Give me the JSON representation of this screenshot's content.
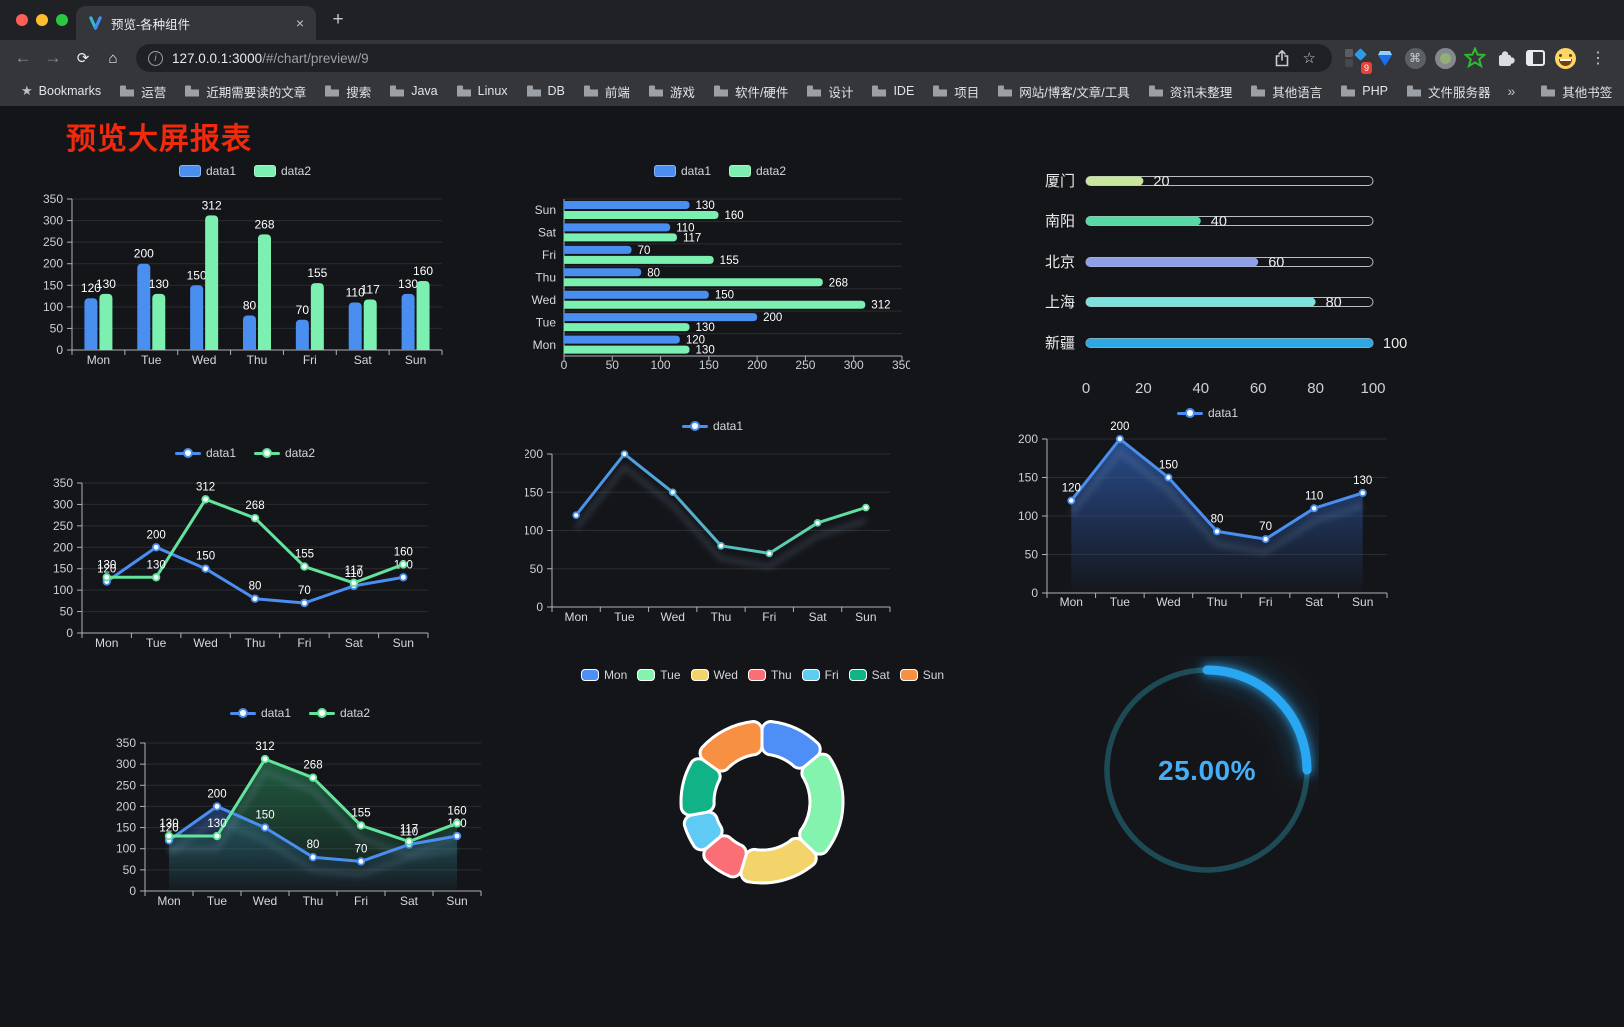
{
  "browser": {
    "tab_title": "预览-各种组件",
    "url_host": "127.0.0.1:3000",
    "url_path": "/#/chart/preview/9",
    "bookmarks_label": "Bookmarks",
    "bookmarks": [
      "运营",
      "近期需要读的文章",
      "搜索",
      "Java",
      "Linux",
      "DB",
      "前端",
      "游戏",
      "软件/硬件",
      "设计",
      "IDE",
      "项目",
      "网站/博客/文章/工具",
      "资讯未整理",
      "其他语言",
      "PHP",
      "文件服务器"
    ],
    "overflow": "»",
    "other_bookmarks": "其他书签",
    "extension_badge": "9",
    "icons": {
      "back": "←",
      "forward": "→",
      "reload": "⟳",
      "home": "⌂",
      "info": "i",
      "star": "☆",
      "close": "×",
      "new_tab": "+",
      "kebab": "⋮",
      "cmd": "⌘",
      "bookmarks_star": "★"
    }
  },
  "page": {
    "title": "预览大屏报表"
  },
  "chart_data": [
    {
      "id": "grouped-bar",
      "type": "bar",
      "categories": [
        "Mon",
        "Tue",
        "Wed",
        "Thu",
        "Fri",
        "Sat",
        "Sun"
      ],
      "series": [
        {
          "name": "data1",
          "color": "#4a8ff0",
          "values": [
            120,
            200,
            150,
            80,
            70,
            110,
            130
          ]
        },
        {
          "name": "data2",
          "color": "#7cf0b1",
          "values": [
            130,
            130,
            312,
            268,
            155,
            117,
            160
          ]
        }
      ],
      "ylim": [
        0,
        350
      ],
      "ytick_step": 50,
      "labels": true,
      "legend_position": "top",
      "grid": true
    },
    {
      "id": "horizontal-bar",
      "type": "bar-horizontal",
      "categories": [
        "Mon",
        "Tue",
        "Wed",
        "Thu",
        "Fri",
        "Sat",
        "Sun"
      ],
      "series": [
        {
          "name": "data1",
          "color": "#4a8ff0",
          "values": [
            120,
            200,
            150,
            80,
            70,
            110,
            130
          ]
        },
        {
          "name": "data2",
          "color": "#7cf0b1",
          "values": [
            130,
            130,
            312,
            268,
            155,
            117,
            160
          ]
        }
      ],
      "xlim": [
        0,
        350
      ],
      "xtick_step": 50,
      "labels": true,
      "legend_position": "top"
    },
    {
      "id": "city-progress",
      "type": "progress-bars",
      "categories": [
        "厦门",
        "南阳",
        "北京",
        "上海",
        "新疆"
      ],
      "values": [
        20,
        40,
        60,
        80,
        100
      ],
      "colors": [
        "#c8e69c",
        "#57d8a4",
        "#8fa0e8",
        "#7de2de",
        "#2ea7e0"
      ],
      "xlim": [
        0,
        100
      ],
      "xtick_step": 20
    },
    {
      "id": "line-two-series",
      "type": "line",
      "categories": [
        "Mon",
        "Tue",
        "Wed",
        "Thu",
        "Fri",
        "Sat",
        "Sun"
      ],
      "series": [
        {
          "name": "data1",
          "color": "#4a8ff0",
          "values": [
            120,
            200,
            150,
            80,
            70,
            110,
            130
          ]
        },
        {
          "name": "data2",
          "color": "#63e39b",
          "values": [
            130,
            130,
            312,
            268,
            155,
            117,
            160
          ]
        }
      ],
      "ylim": [
        0,
        350
      ],
      "ytick_step": 50,
      "labels": true,
      "legend_position": "top"
    },
    {
      "id": "line-gradient",
      "type": "line",
      "categories": [
        "Mon",
        "Tue",
        "Wed",
        "Thu",
        "Fri",
        "Sat",
        "Sun"
      ],
      "series": [
        {
          "name": "data1",
          "gradient": [
            "#4a8ff0",
            "#63e39b"
          ],
          "values": [
            120,
            200,
            150,
            80,
            70,
            110,
            130
          ]
        }
      ],
      "ylim": [
        0,
        200
      ],
      "ytick_step": 50,
      "labels": false,
      "legend_position": "top"
    },
    {
      "id": "area-single",
      "type": "area",
      "categories": [
        "Mon",
        "Tue",
        "Wed",
        "Thu",
        "Fri",
        "Sat",
        "Sun"
      ],
      "series": [
        {
          "name": "data1",
          "color": "#4a8ff0",
          "fill": [
            "rgba(44,86,160,0.85)",
            "rgba(44,86,160,0.02)"
          ],
          "values": [
            120,
            200,
            150,
            80,
            70,
            110,
            130
          ]
        }
      ],
      "ylim": [
        0,
        200
      ],
      "ytick_step": 50,
      "labels": true,
      "legend_position": "top"
    },
    {
      "id": "area-two-series",
      "type": "area",
      "categories": [
        "Mon",
        "Tue",
        "Wed",
        "Thu",
        "Fri",
        "Sat",
        "Sun"
      ],
      "series": [
        {
          "name": "data1",
          "color": "#4a8ff0",
          "fill": [
            "rgba(44,86,160,0.55)",
            "rgba(44,86,160,0.03)"
          ],
          "values": [
            120,
            200,
            150,
            80,
            70,
            110,
            130
          ]
        },
        {
          "name": "data2",
          "color": "#63e39b",
          "fill": [
            "rgba(40,130,85,0.65)",
            "rgba(40,130,85,0.04)"
          ],
          "values": [
            130,
            130,
            312,
            268,
            155,
            117,
            160
          ]
        }
      ],
      "ylim": [
        0,
        350
      ],
      "ytick_step": 50,
      "labels": true,
      "legend_position": "top"
    },
    {
      "id": "weekday-donut",
      "type": "pie",
      "categories": [
        "Mon",
        "Tue",
        "Wed",
        "Thu",
        "Fri",
        "Sat",
        "Sun"
      ],
      "values": [
        120,
        200,
        150,
        80,
        70,
        110,
        130
      ],
      "colors": [
        "#4e8ef7",
        "#83f3ae",
        "#f3d46a",
        "#fa6f76",
        "#5fcbf5",
        "#12b287",
        "#f79043"
      ],
      "border_color": "#ffffff",
      "legend_position": "top"
    },
    {
      "id": "percent-gauge",
      "type": "gauge",
      "value": 25,
      "label": "25.00%",
      "color": "#29a7f2",
      "track_color": "#1d4b55",
      "text_color": "#46aef7"
    }
  ]
}
